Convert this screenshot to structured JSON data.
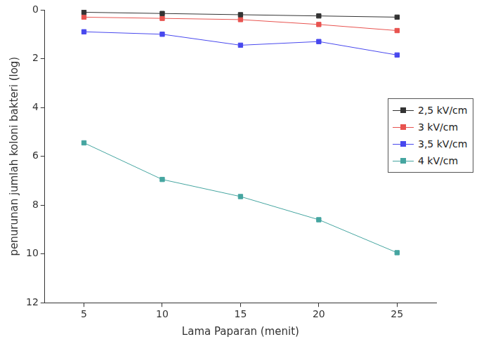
{
  "chart_data": {
    "type": "line",
    "x_label": "Lama Paparan (menit)",
    "y_label": "penurunan jumlah koloni bakteri (log)",
    "x": [
      5,
      10,
      15,
      20,
      25
    ],
    "series": [
      {
        "name": "2,5 kV/cm",
        "color": "#333333",
        "marker": "square",
        "values": [
          0.1,
          0.15,
          0.2,
          0.25,
          0.3
        ]
      },
      {
        "name": "3 kV/cm",
        "color": "#e8534f",
        "marker": "square",
        "values": [
          0.3,
          0.35,
          0.4,
          0.6,
          0.85
        ]
      },
      {
        "name": "3,5 kV/cm",
        "color": "#4848ee",
        "marker": "square",
        "values": [
          0.9,
          1.0,
          1.45,
          1.3,
          1.85
        ]
      },
      {
        "name": "4 kV/cm",
        "color": "#45a5a0",
        "marker": "square",
        "values": [
          5.45,
          6.95,
          7.65,
          8.6,
          9.95
        ]
      }
    ],
    "xlim": [
      2.5,
      27.5
    ],
    "xticks": [
      5,
      10,
      15,
      20,
      25
    ],
    "ylim": [
      12,
      0
    ],
    "yticks": [
      0,
      2,
      4,
      6,
      8,
      10,
      12
    ],
    "grid": false,
    "legend": "right"
  }
}
